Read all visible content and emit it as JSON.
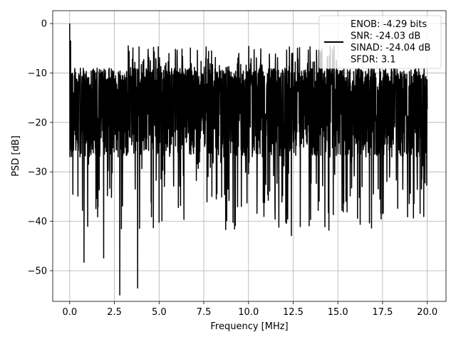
{
  "chart_data": {
    "type": "line",
    "xlabel": "Frequency [MHz]",
    "ylabel": "PSD [dB]",
    "xlim": [
      -0.95,
      21.05
    ],
    "ylim": [
      -56.2,
      2.6
    ],
    "x_ticks": [
      0.0,
      2.5,
      5.0,
      7.5,
      10.0,
      12.5,
      15.0,
      17.5,
      20.0
    ],
    "x_tick_labels": [
      "0.0",
      "2.5",
      "5.0",
      "7.5",
      "10.0",
      "12.5",
      "15.0",
      "17.5",
      "20.0"
    ],
    "y_ticks": [
      0,
      -10,
      -20,
      -30,
      -40,
      -50
    ],
    "y_tick_labels": [
      "0",
      "−10",
      "−20",
      "−30",
      "−40",
      "−50"
    ],
    "grid": true,
    "legend_position": "top-right",
    "legend_entries": [
      "ENOB: -4.29 bits",
      "SNR: -24.03 dB",
      "SINAD: -24.04 dB",
      "SFDR: 3.1"
    ],
    "series": [
      {
        "color": "#000000",
        "description_points": {
          "x": [
            0.0,
            0.02,
            0.05,
            0.1,
            0.2,
            0.3,
            0.5,
            0.8,
            1.1,
            1.5,
            1.9,
            2.3,
            2.8,
            3.2,
            3.8,
            4.4,
            5.0,
            5.6,
            6.2,
            6.8,
            7.5,
            8.2,
            8.9,
            9.6,
            10.2,
            10.9,
            11.7,
            12.4,
            13.1,
            13.9,
            14.6,
            15.3,
            16.1,
            16.8,
            17.5,
            18.2,
            18.9,
            19.6,
            20.0
          ],
          "y": [
            0.0,
            -14.5,
            -3.5,
            -26.9,
            -14.0,
            -22.5,
            -11.2,
            -48.3,
            -12.5,
            -35.4,
            -47.4,
            -11.4,
            -54.9,
            -11.0,
            -53.5,
            -10.6,
            -40.2,
            -9.8,
            -36.8,
            -8.1,
            -10.2,
            -35.5,
            -8.7,
            -37.0,
            -10.5,
            -36.2,
            -41.2,
            -42.9,
            -9.5,
            -37.8,
            -10.2,
            -38.1,
            -39.4,
            -11.5,
            -38.5,
            -9.2,
            -39.1,
            -38.4,
            -17.3
          ]
        },
        "noise_floor_dB": -18.0,
        "noise_band_top_dB": -9.0,
        "num_samples": 2048
      }
    ]
  }
}
